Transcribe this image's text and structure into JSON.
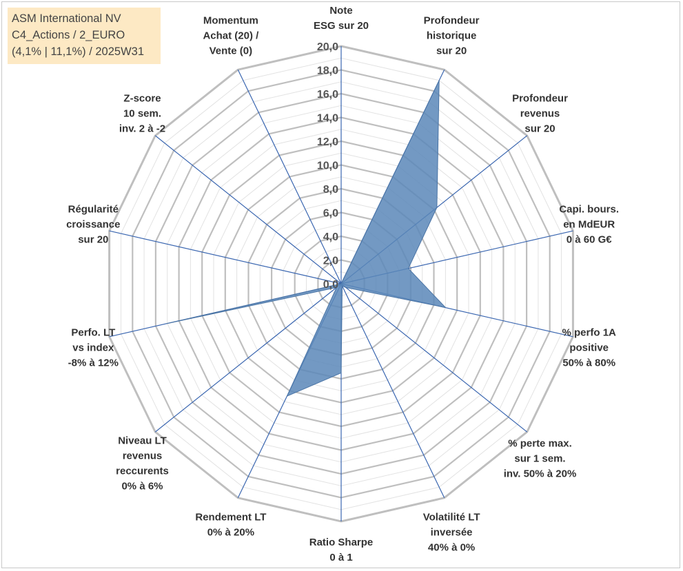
{
  "info": {
    "line1": "ASM International NV",
    "line2": "C4_Actions / 2_EURO",
    "line3": "(4,1% | 11,1%) / 2025W31"
  },
  "colors": {
    "fill": "#5b87b8",
    "stroke": "#4a74a5",
    "spoke": "#3a66b0",
    "grid_major": "#bfbfbf",
    "grid_minor": "#e2e2e2",
    "info_bg": "#fde9c4"
  },
  "chart_data": {
    "type": "radar",
    "title": "",
    "range": [
      0,
      20
    ],
    "ticks": [
      "0,0",
      "2,0",
      "4,0",
      "6,0",
      "8,0",
      "10,0",
      "12,0",
      "14,0",
      "16,0",
      "18,0",
      "20,0"
    ],
    "grid": true,
    "axes": [
      [
        "Note",
        "ESG sur 20"
      ],
      [
        "Profondeur",
        "historique",
        "sur 20"
      ],
      [
        "Profondeur",
        "revenus",
        "sur 20"
      ],
      [
        "Capi. bours.",
        "en MdEUR",
        "0 à 60 G€"
      ],
      [
        "% perfo 1A",
        "positive",
        "50% à 80%"
      ],
      [
        "% perte max.",
        "sur 1 sem.",
        "inv. 50% à 20%"
      ],
      [
        "Volatilité LT",
        "inversée",
        "40% à 0%"
      ],
      [
        "Ratio Sharpe",
        "0 à 1"
      ],
      [
        "Rendement LT",
        "0% à 20%"
      ],
      [
        "Niveau LT",
        "revenus",
        "reccurents",
        "0% à 6%"
      ],
      [
        "Perfo. LT",
        "vs index",
        "-8% à 12%"
      ],
      [
        "Régularité",
        "croissance",
        "sur 20"
      ],
      [
        "Z-score",
        "10 sem.",
        "inv. 2 à -2"
      ],
      [
        "Momentum",
        "Achat (20) /",
        "Vente (0)"
      ]
    ],
    "values": [
      0.0,
      19.0,
      10.3,
      5.8,
      9.0,
      0.5,
      0.2,
      7.5,
      10.5,
      0.5,
      15.1,
      0.0,
      0.0,
      0.0
    ]
  }
}
